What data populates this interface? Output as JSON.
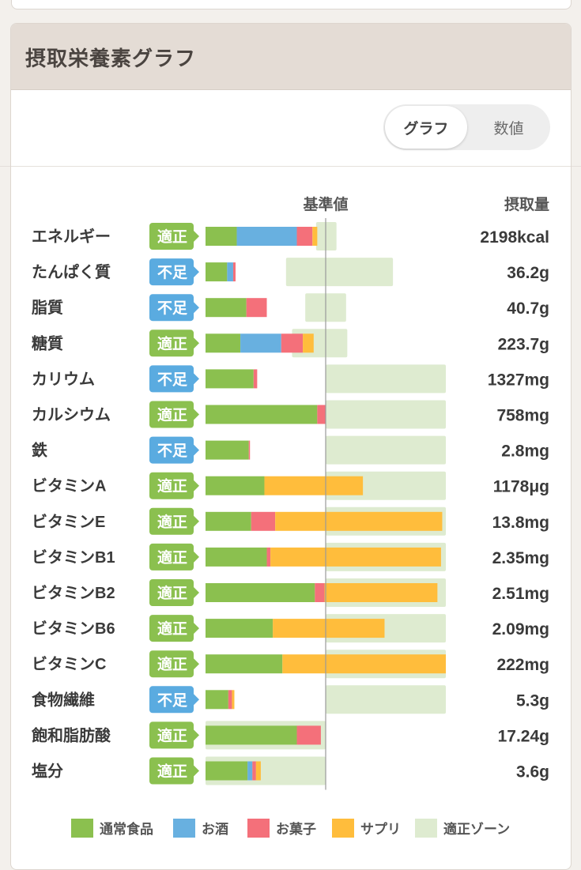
{
  "panel": {
    "title": "摂取栄養素グラフ",
    "toggle": {
      "active_label": "グラフ",
      "inactive_label": "数値"
    }
  },
  "colors": {
    "regular_food": "#8bc04f",
    "alcohol": "#68b0e0",
    "snacks": "#f4707a",
    "supplements": "#ffbd3c",
    "proper_zone": "#deebd0",
    "badge_ok": "#8bc04f",
    "badge_short": "#5aabe0",
    "baseline": "#9a9a9a"
  },
  "chart_data": {
    "type": "bar",
    "stacked": true,
    "orientation": "horizontal",
    "header": {
      "baseline_label": "基準値",
      "amount_label": "摂取量"
    },
    "scale_note": "percent of reference value (基準値 = 100)",
    "series": [
      {
        "key": "regular_food",
        "name": "通常食品"
      },
      {
        "key": "alcohol",
        "name": "お酒"
      },
      {
        "key": "snacks",
        "name": "お菓子"
      },
      {
        "key": "supplements",
        "name": "サプリ"
      }
    ],
    "zone_name": "適正ゾーン",
    "rows": [
      {
        "name": "エネルギー",
        "status": "適正",
        "amount": "2198kcal",
        "values": [
          26,
          50,
          13,
          4
        ],
        "zone": [
          92,
          109
        ]
      },
      {
        "name": "たんぱく質",
        "status": "不足",
        "amount": "36.2g",
        "values": [
          18,
          5,
          2,
          0
        ],
        "zone": [
          67,
          156
        ]
      },
      {
        "name": "脂質",
        "status": "不足",
        "amount": "40.7g",
        "values": [
          34,
          0,
          17,
          0
        ],
        "zone": [
          83,
          117
        ]
      },
      {
        "name": "糖質",
        "status": "適正",
        "amount": "223.7g",
        "values": [
          29,
          34,
          18,
          9
        ],
        "zone": [
          72,
          118
        ]
      },
      {
        "name": "カリウム",
        "status": "不足",
        "amount": "1327mg",
        "values": [
          40,
          0,
          3,
          0
        ],
        "zone": [
          100,
          200
        ]
      },
      {
        "name": "カルシウム",
        "status": "適正",
        "amount": "758mg",
        "values": [
          93,
          0,
          7,
          0
        ],
        "zone": [
          100,
          200
        ]
      },
      {
        "name": "鉄",
        "status": "不足",
        "amount": "2.8mg",
        "values": [
          36,
          0,
          1,
          0
        ],
        "zone": [
          100,
          200
        ]
      },
      {
        "name": "ビタミンA",
        "status": "適正",
        "amount": "1178μg",
        "values": [
          49,
          0,
          0,
          82
        ],
        "zone": [
          100,
          200
        ]
      },
      {
        "name": "ビタミンE",
        "status": "適正",
        "amount": "13.8mg",
        "values": [
          38,
          0,
          20,
          139
        ],
        "zone": [
          100,
          200
        ]
      },
      {
        "name": "ビタミンB1",
        "status": "適正",
        "amount": "2.35mg",
        "values": [
          51,
          0,
          3,
          142
        ],
        "zone": [
          100,
          200
        ]
      },
      {
        "name": "ビタミンB2",
        "status": "適正",
        "amount": "2.51mg",
        "values": [
          91,
          0,
          8,
          94
        ],
        "zone": [
          100,
          200
        ]
      },
      {
        "name": "ビタミンB6",
        "status": "適正",
        "amount": "2.09mg",
        "values": [
          56,
          0,
          0,
          93
        ],
        "zone": [
          100,
          200
        ]
      },
      {
        "name": "ビタミンC",
        "status": "適正",
        "amount": "222mg",
        "values": [
          64,
          0,
          0,
          136
        ],
        "zone": [
          100,
          200
        ]
      },
      {
        "name": "食物繊維",
        "status": "不足",
        "amount": "5.3g",
        "values": [
          19,
          0,
          3,
          2
        ],
        "zone": [
          100,
          200
        ]
      },
      {
        "name": "飽和脂肪酸",
        "status": "適正",
        "amount": "17.24g",
        "values": [
          76,
          0,
          20,
          0
        ],
        "zone": [
          0,
          100
        ]
      },
      {
        "name": "塩分",
        "status": "適正",
        "amount": "3.6g",
        "values": [
          35,
          4,
          3,
          4
        ],
        "zone": [
          0,
          100
        ]
      }
    ],
    "legend": [
      "通常食品",
      "お酒",
      "お菓子",
      "サプリ",
      "適正ゾーン"
    ]
  }
}
